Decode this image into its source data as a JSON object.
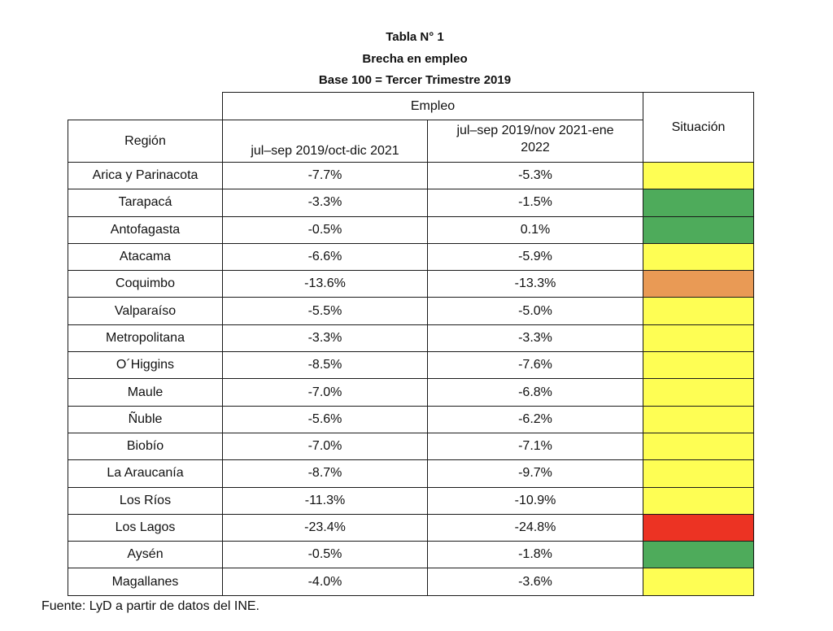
{
  "titles": [
    "Tabla N° 1",
    "Brecha en empleo",
    "Base 100 = Tercer Trimestre 2019"
  ],
  "header": {
    "group": "Empleo",
    "region": "Región",
    "col1": "jul–sep 2019/oct-dic 2021",
    "col2_line1": "jul–sep 2019/nov 2021-ene",
    "col2_line2": "2022",
    "situacion": "Situación"
  },
  "status_colors": {
    "yellow": "#fefe54",
    "green": "#4eab5b",
    "orange": "#e99a55",
    "red": "#ec3323"
  },
  "rows": [
    {
      "region": "Arica y Parinacota",
      "v1": "-7.7%",
      "v2": "-5.3%",
      "status": "yellow"
    },
    {
      "region": "Tarapacá",
      "v1": "-3.3%",
      "v2": "-1.5%",
      "status": "green"
    },
    {
      "region": "Antofagasta",
      "v1": "-0.5%",
      "v2": "0.1%",
      "status": "green"
    },
    {
      "region": "Atacama",
      "v1": "-6.6%",
      "v2": "-5.9%",
      "status": "yellow"
    },
    {
      "region": "Coquimbo",
      "v1": "-13.6%",
      "v2": "-13.3%",
      "status": "orange"
    },
    {
      "region": "Valparaíso",
      "v1": "-5.5%",
      "v2": "-5.0%",
      "status": "yellow"
    },
    {
      "region": "Metropolitana",
      "v1": "-3.3%",
      "v2": "-3.3%",
      "status": "yellow"
    },
    {
      "region": "O´Higgins",
      "v1": "-8.5%",
      "v2": "-7.6%",
      "status": "yellow"
    },
    {
      "region": "Maule",
      "v1": "-7.0%",
      "v2": "-6.8%",
      "status": "yellow"
    },
    {
      "region": "Ñuble",
      "v1": "-5.6%",
      "v2": "-6.2%",
      "status": "yellow"
    },
    {
      "region": "Biobío",
      "v1": "-7.0%",
      "v2": "-7.1%",
      "status": "yellow"
    },
    {
      "region": "La Araucanía",
      "v1": "-8.7%",
      "v2": "-9.7%",
      "status": "yellow"
    },
    {
      "region": "Los Ríos",
      "v1": "-11.3%",
      "v2": "-10.9%",
      "status": "yellow"
    },
    {
      "region": "Los Lagos",
      "v1": "-23.4%",
      "v2": "-24.8%",
      "status": "red"
    },
    {
      "region": "Aysén",
      "v1": "-0.5%",
      "v2": "-1.8%",
      "status": "green"
    },
    {
      "region": "Magallanes",
      "v1": "-4.0%",
      "v2": "-3.6%",
      "status": "yellow"
    }
  ],
  "footnote": "Fuente: LyD a partir de datos del INE."
}
